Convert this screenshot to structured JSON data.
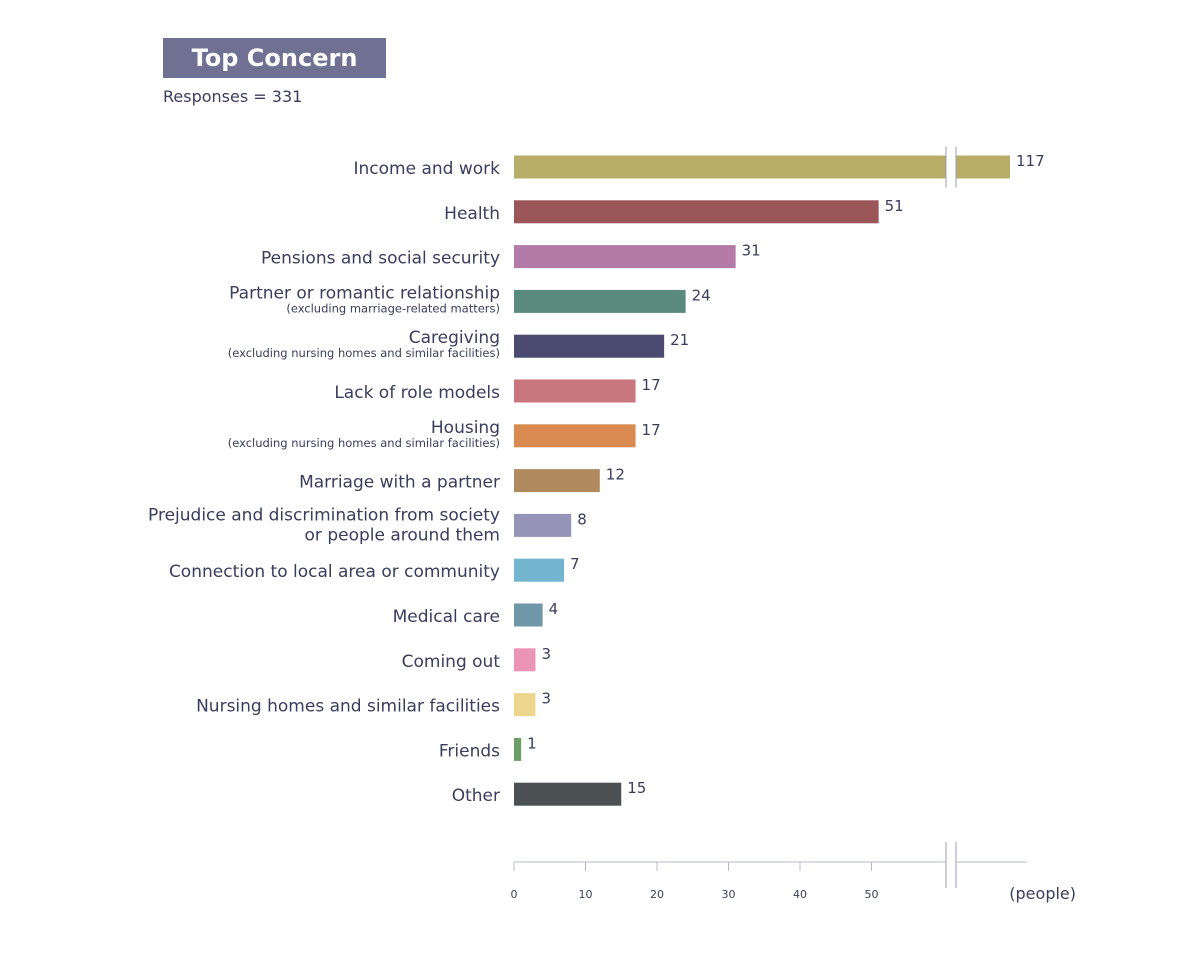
{
  "chart_data": {
    "type": "bar",
    "orientation": "horizontal",
    "title": "Top Concern",
    "subtitle": "Responses = 331",
    "x_unit_label": "(people)",
    "x_ticks": [
      0,
      10,
      20,
      30,
      40,
      50
    ],
    "axis_break": true,
    "categories": [
      {
        "label": "Income and work",
        "note": "",
        "value": 117,
        "color": "#b8ad68"
      },
      {
        "label": "Health",
        "note": "",
        "value": 51,
        "color": "#9a5658"
      },
      {
        "label": "Pensions and social security",
        "note": "",
        "value": 31,
        "color": "#b57ba8"
      },
      {
        "label": "Partner or romantic relationship",
        "note": "(excluding marriage-related matters)",
        "value": 24,
        "color": "#5a8a7c"
      },
      {
        "label": "Caregiving",
        "note": "(excluding nursing homes and similar facilities)",
        "value": 21,
        "color": "#4b4a70"
      },
      {
        "label": "Lack of role models",
        "note": "",
        "value": 17,
        "color": "#c9767f"
      },
      {
        "label": "Housing",
        "note": "(excluding nursing homes and similar facilities)",
        "value": 17,
        "color": "#d98a50"
      },
      {
        "label": "Marriage with a partner",
        "note": "",
        "value": 12,
        "color": "#ae8a5e"
      },
      {
        "label": "Prejudice and discrimination from society|or people around them",
        "note": "",
        "value": 8,
        "color": "#9593b8"
      },
      {
        "label": "Connection to local area or community",
        "note": "",
        "value": 7,
        "color": "#73b4cf"
      },
      {
        "label": "Medical care",
        "note": "",
        "value": 4,
        "color": "#6f97a8"
      },
      {
        "label": "Coming out",
        "note": "",
        "value": 3,
        "color": "#ec94b4"
      },
      {
        "label": "Nursing homes and similar facilities",
        "note": "",
        "value": 3,
        "color": "#ecd68e"
      },
      {
        "label": "Friends",
        "note": "",
        "value": 1,
        "color": "#6d9e69"
      },
      {
        "label": "Other",
        "note": "",
        "value": 15,
        "color": "#4b5153"
      }
    ]
  }
}
